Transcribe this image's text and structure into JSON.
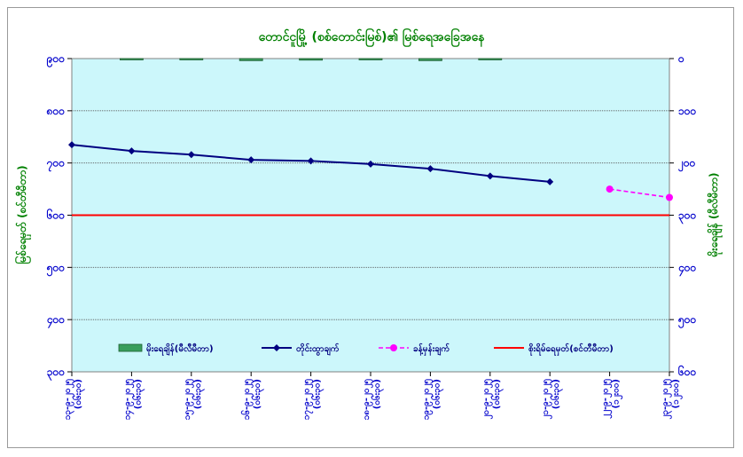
{
  "chart_data": {
    "type": "line",
    "title": "တောင်ငူမြို့ (စစ်တောင်းမြစ်)၏ မြစ်ရေအခြေအနေ",
    "ylabel_left": "မြစ်ရေမှတ် (စင်တီမီတာ)",
    "ylabel_right": "မိုးရေချိန် (မီလီမီတာ)",
    "left_axis": {
      "min": 300,
      "max": 900,
      "ticks": [
        900,
        800,
        700,
        600,
        500,
        400,
        300
      ],
      "tick_labels": [
        "၉၀၀",
        "၈၀၀",
        "၇၀၀",
        "၆၀၀",
        "၅၀၀",
        "၄၀၀",
        "၃၀၀"
      ]
    },
    "right_axis": {
      "min": 0,
      "max": 600,
      "reversed": true,
      "ticks": [
        0,
        100,
        200,
        300,
        400,
        500,
        600
      ],
      "tick_labels": [
        "၀",
        "၁၀၀",
        "၂၀၀",
        "၃၀၀",
        "၄၀၀",
        "၅၀၀",
        "၆၀၀"
      ]
    },
    "categories": [
      [
        "၁၃-၉-၂၀၂၅",
        "(၀၆း၃၀)"
      ],
      [
        "၁၄-၉-၂၀၂၅",
        "(၀၆း၃၀)"
      ],
      [
        "၁၅-၉-၂၀၂၅",
        "(၀၆း၃၀)"
      ],
      [
        "၁၆-၉-၂၀၂၅",
        "(၀၆း၃၀)"
      ],
      [
        "၁၇-၉-၂၀၂၅",
        "(၀၆း၃၀)"
      ],
      [
        "၁၈-၉-၂၀၂၅",
        "(၀၆း၃၀)"
      ],
      [
        "၁၉-၉-၂၀၂၅",
        "(၀၆း၃၀)"
      ],
      [
        "၂၀-၉-၂၀၂၅",
        "(၀၆း၃၀)"
      ],
      [
        "၂၁-၉-၂၀၂၅",
        "(၀၆း၃၀)"
      ],
      [
        "၂၂-၉-၂၀၂၅",
        "(၁၂း၀၀)"
      ],
      [
        "၂၃-၉-၂၀၂၅",
        "(၁၂း၀၀)"
      ]
    ],
    "series": [
      {
        "name": "မိုးရေချိန်(မီလီမီတာ)",
        "kind": "bar",
        "axis": "right",
        "color": "#3a9e5c",
        "values": [
          0,
          2,
          1,
          4,
          3,
          1,
          4,
          0.5,
          0,
          0,
          0
        ]
      },
      {
        "name": "တိုင်းထွာချက်",
        "kind": "line",
        "axis": "left",
        "color": "#000080",
        "values": [
          735,
          723,
          716,
          706,
          704,
          698,
          689,
          675,
          664,
          null,
          null
        ]
      },
      {
        "name": "ခန့်မှန်းချက်",
        "kind": "dashed-line",
        "axis": "left",
        "color": "#ff00ff",
        "values": [
          null,
          null,
          null,
          null,
          null,
          null,
          null,
          null,
          null,
          650,
          634
        ]
      },
      {
        "name": "စိုးရိမ်ရေမှတ်(စင်တီမီတာ)",
        "kind": "hline",
        "axis": "left",
        "color": "#ff0000",
        "value": 600
      }
    ],
    "grid": true,
    "legend_position": "inside-bottom",
    "plot_background": "#ccf7fb"
  }
}
